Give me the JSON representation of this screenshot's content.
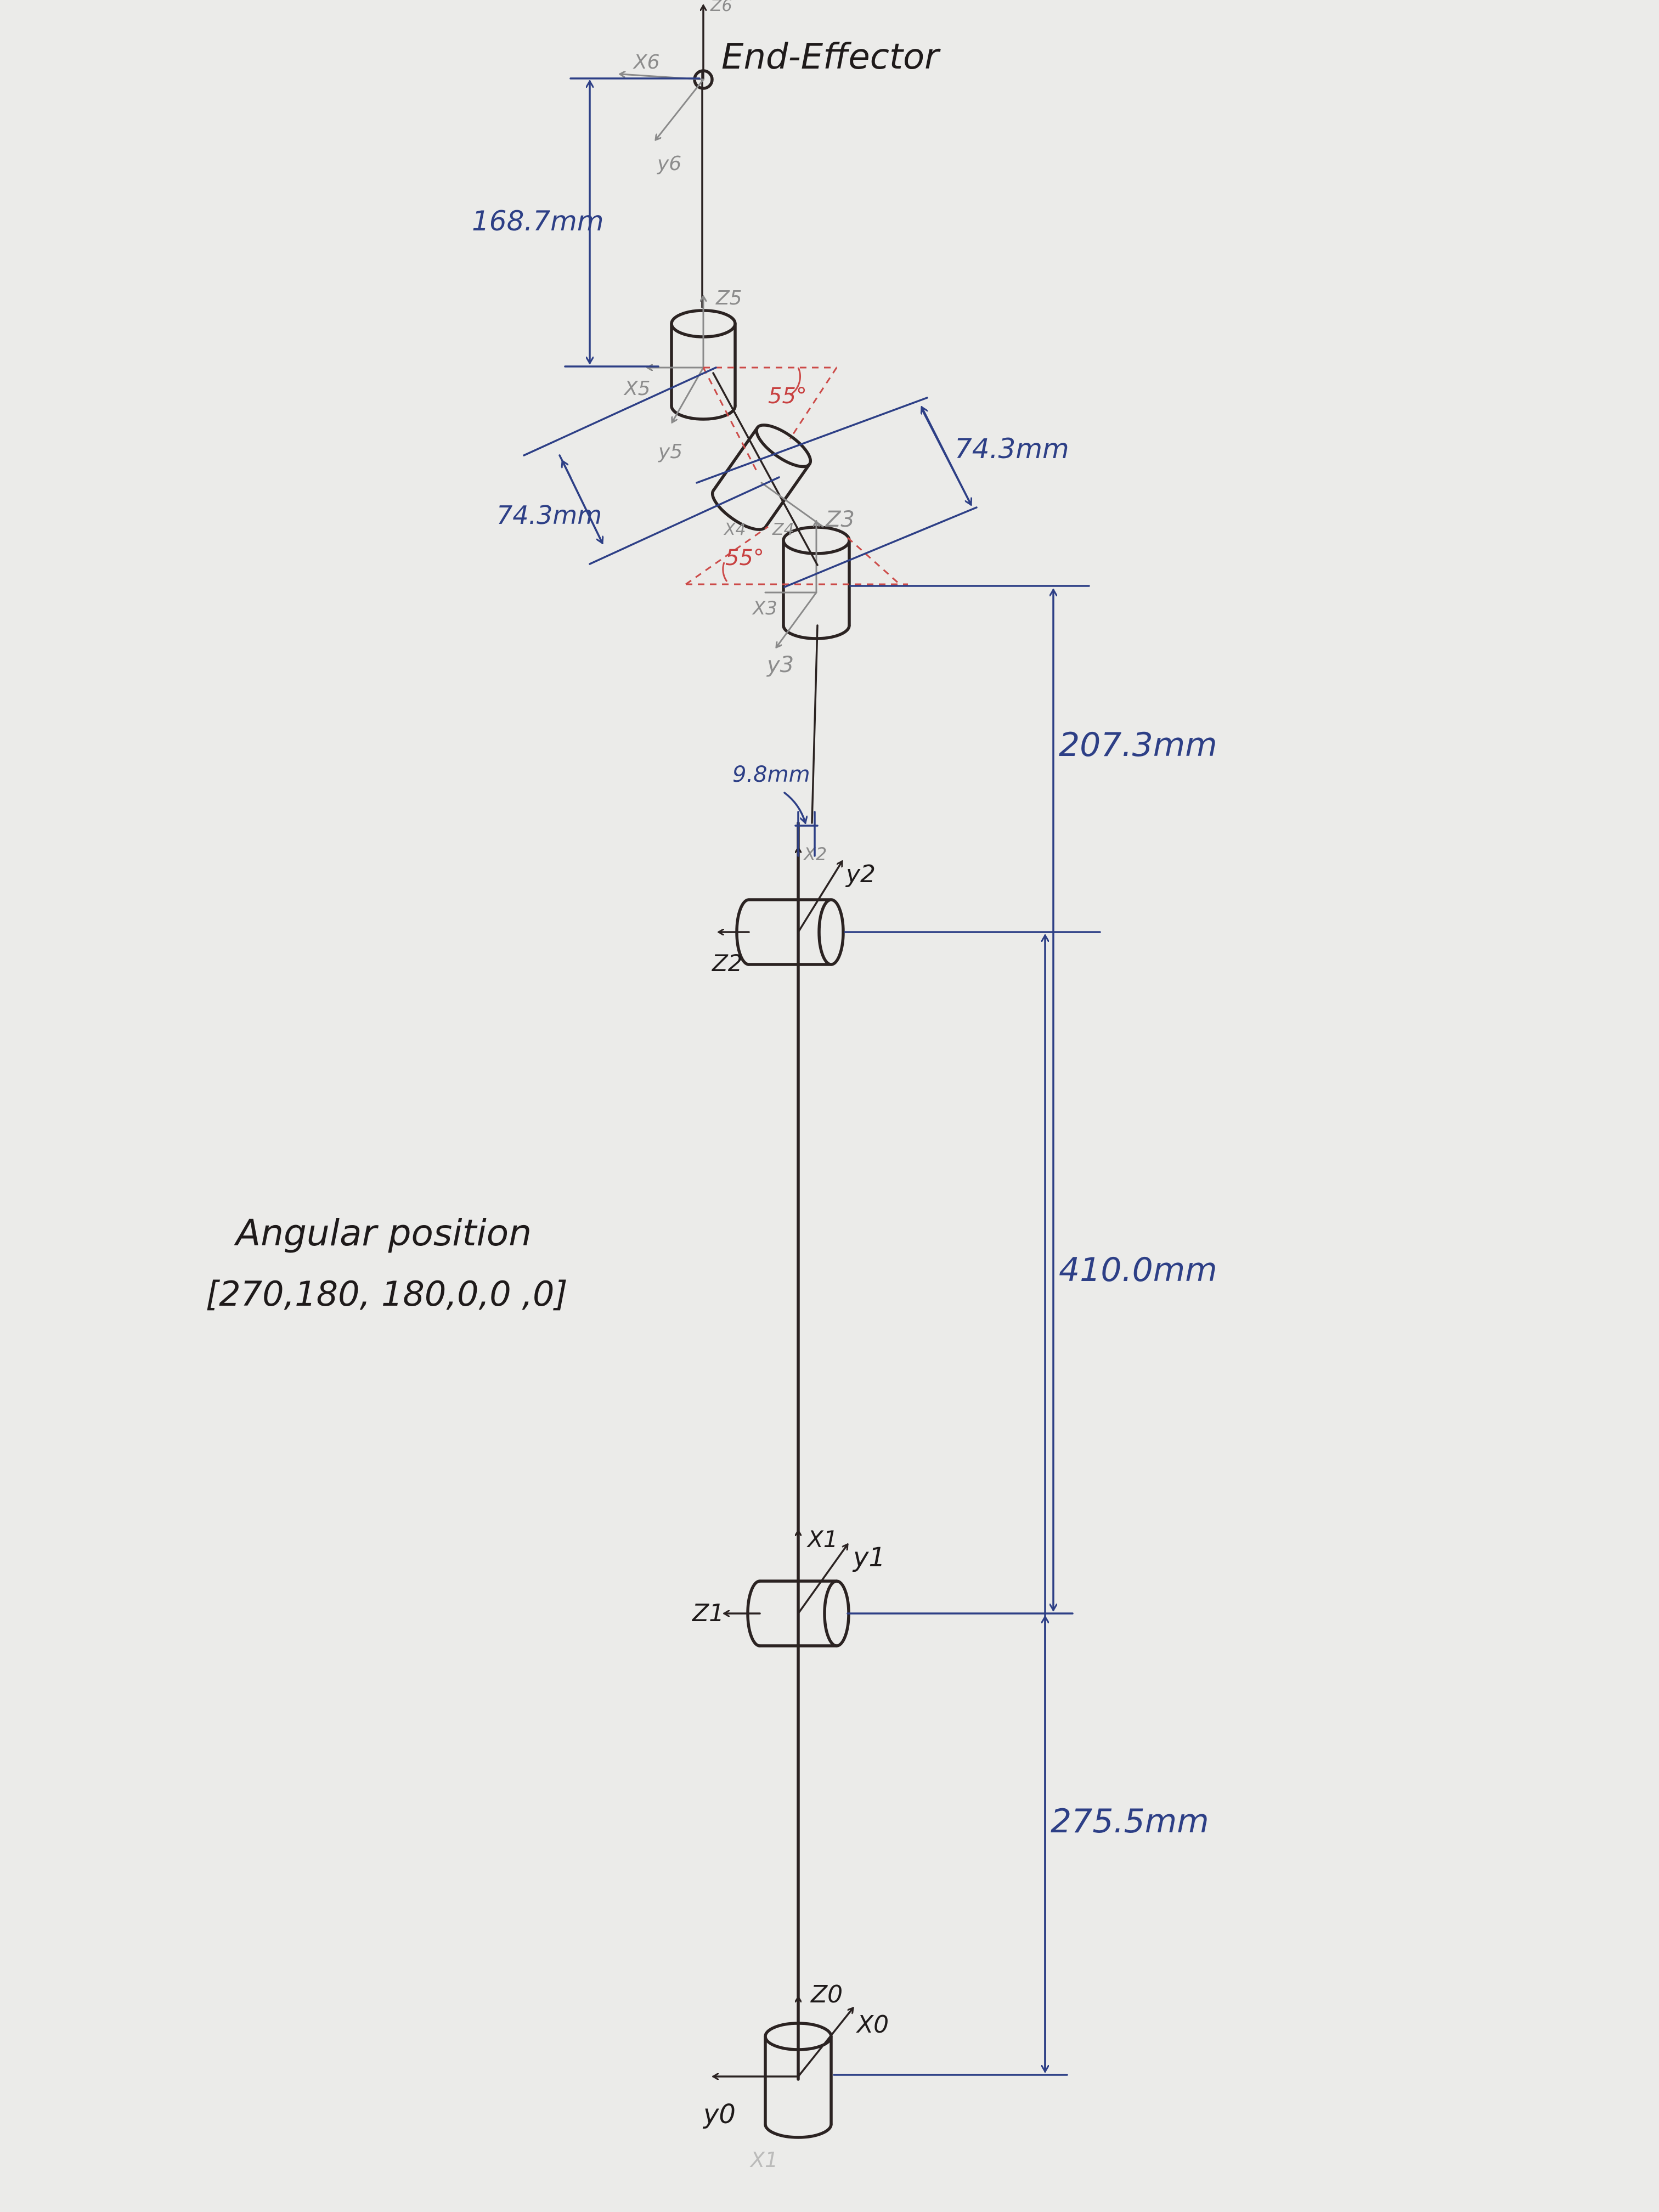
{
  "title": "End-Effector",
  "angular_position": {
    "label": "Angular position",
    "values": "[270,180, 180,0,0 ,0]"
  },
  "dimensions": {
    "base_to_joint1": "275.5mm",
    "joint1_to_joint2": "410.0mm",
    "joint2_to_joint3": "207.3mm",
    "offset": "9.8mm",
    "link4": "74.3mm",
    "link5": "74.3mm",
    "wrist_to_effector": "168.7mm"
  },
  "angles": {
    "upper": "55°",
    "lower": "55°"
  },
  "frame_labels": {
    "z0": "Z0",
    "x0": "X0",
    "y0": "y0",
    "x1": "X1",
    "y1": "y1",
    "z1": "Z1",
    "x2": "X2",
    "y2": "y2",
    "z2": "Z2",
    "z3": "Z3",
    "x3": "X3",
    "y3": "y3",
    "x4": "X4",
    "z4": "Z4",
    "z5": "Z5",
    "x5": "X5",
    "y5": "y5",
    "z6": "Z6",
    "x6": "X6",
    "y6": "y6",
    "x_faint": "X1"
  },
  "colors": {
    "ink": "#2b2322",
    "dimension": "#2d3f86",
    "angle": "#cc4a48",
    "frame": "#8a8a8a",
    "paper": "#ebebe9"
  }
}
